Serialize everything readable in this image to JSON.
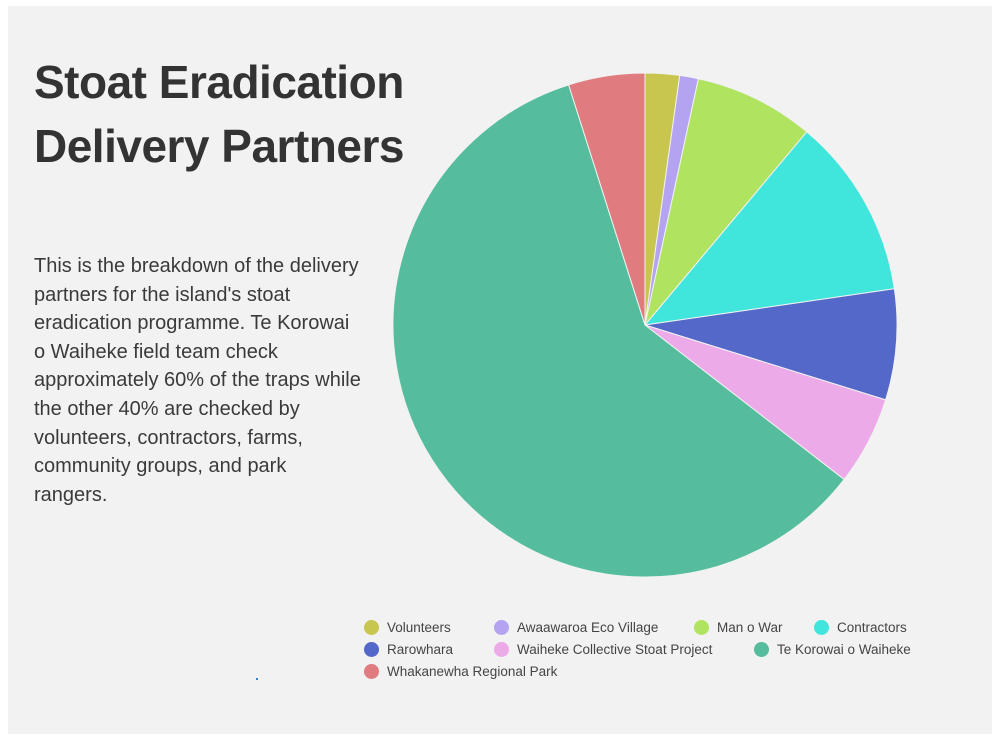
{
  "page": {
    "title": "Stoat Eradication\nDelivery Partners",
    "description": "This is the breakdown of the delivery partners for the island's stoat eradication programme. Te Korowai o Waiheke field team check approximately 60% of the traps while the other 40% are checked by volunteers, contractors, farms, community groups, and park rangers."
  },
  "chart_data": {
    "type": "pie",
    "title": "Stoat Eradication Delivery Partners",
    "start_angle_deg": 0,
    "direction": "clockwise",
    "legend_position": "bottom",
    "slices": [
      {
        "label": "Volunteers",
        "value": 2.2,
        "color": "#c9c64f"
      },
      {
        "label": "Awaawaroa Eco Village",
        "value": 1.2,
        "color": "#b3a3f0"
      },
      {
        "label": "Man o War",
        "value": 7.7,
        "color": "#b0e35f"
      },
      {
        "label": "Contractors",
        "value": 11.6,
        "color": "#40e5dc"
      },
      {
        "label": "Rarowhara",
        "value": 7.1,
        "color": "#5468c9"
      },
      {
        "label": "Waiheke Collective Stoat Project",
        "value": 5.7,
        "color": "#ecaae9"
      },
      {
        "label": "Te Korowai o Waiheke",
        "value": 59.6,
        "color": "#55bd9d"
      },
      {
        "label": "Whakanewha Regional Park",
        "value": 4.9,
        "color": "#e07b80"
      }
    ]
  }
}
